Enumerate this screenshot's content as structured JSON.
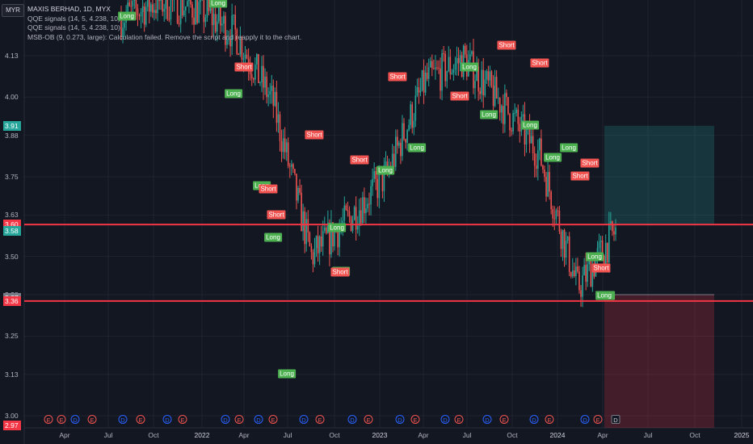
{
  "legend": {
    "title": "MAXIS BERHAD, 1D, MYX",
    "lines": [
      "QQE signals (14, 5, 4.238, 10)",
      "QQE signals (14, 5, 4.238, 10)",
      "MSB-OB (9, 0.273, large): Calculation failed. Remove the script and reapply it to the chart."
    ]
  },
  "currency": "MYR",
  "y_axis": {
    "ticks": [
      "4.13",
      "4.00",
      "3.88",
      "3.75",
      "3.63",
      "3.50",
      "3.38",
      "3.25",
      "3.13",
      "3.00"
    ],
    "price_tags": [
      {
        "label": "3.91",
        "color": "#26a69a",
        "price": 3.91
      },
      {
        "label": "3.60",
        "color": "#f23645",
        "price": 3.6
      },
      {
        "label": "3.58",
        "color": "#26a69a",
        "price": 3.58
      },
      {
        "label": "3.37",
        "color": "#787b86",
        "price": 3.37
      },
      {
        "label": "3.36",
        "color": "#f23645",
        "price": 3.36
      },
      {
        "label": "2.97",
        "color": "#f23645",
        "price": 2.97
      }
    ]
  },
  "x_axis": {
    "labels": [
      {
        "text": "Apr",
        "year": false
      },
      {
        "text": "Jul",
        "year": false
      },
      {
        "text": "Oct",
        "year": false
      },
      {
        "text": "2022",
        "year": true
      },
      {
        "text": "Apr",
        "year": false
      },
      {
        "text": "Jul",
        "year": false
      },
      {
        "text": "Oct",
        "year": false
      },
      {
        "text": "2023",
        "year": true
      },
      {
        "text": "Apr",
        "year": false
      },
      {
        "text": "Jul",
        "year": false
      },
      {
        "text": "Oct",
        "year": false
      },
      {
        "text": "2024",
        "year": true
      },
      {
        "text": "Apr",
        "year": false
      },
      {
        "text": "Jul",
        "year": false
      },
      {
        "text": "Oct",
        "year": false
      },
      {
        "text": "2025",
        "year": true
      }
    ]
  },
  "signals": [
    {
      "text": "Long",
      "type": "long"
    },
    {
      "text": "Long",
      "type": "long"
    },
    {
      "text": "Short",
      "type": "short"
    },
    {
      "text": "Long",
      "type": "long"
    },
    {
      "text": "Long",
      "type": "long"
    },
    {
      "text": "Short",
      "type": "short"
    },
    {
      "text": "Short",
      "type": "short"
    },
    {
      "text": "Long",
      "type": "long"
    },
    {
      "text": "Long",
      "type": "long"
    },
    {
      "text": "Short",
      "type": "short"
    },
    {
      "text": "Long",
      "type": "long"
    },
    {
      "text": "Long",
      "type": "long"
    },
    {
      "text": "Short",
      "type": "short"
    },
    {
      "text": "Short",
      "type": "short"
    },
    {
      "text": "Long",
      "type": "long"
    },
    {
      "text": "Long",
      "type": "long"
    },
    {
      "text": "Short",
      "type": "short"
    },
    {
      "text": "Short",
      "type": "short"
    },
    {
      "text": "Long",
      "type": "long"
    },
    {
      "text": "Long",
      "type": "long"
    },
    {
      "text": "Short",
      "type": "short"
    },
    {
      "text": "Long",
      "type": "long"
    },
    {
      "text": "Short",
      "type": "short"
    },
    {
      "text": "Long",
      "type": "long"
    },
    {
      "text": "Long",
      "type": "long"
    },
    {
      "text": "Short",
      "type": "short"
    },
    {
      "text": "Short",
      "type": "short"
    },
    {
      "text": "Long",
      "type": "long"
    },
    {
      "text": "Long",
      "type": "long"
    },
    {
      "text": "Short",
      "type": "short"
    },
    {
      "text": "Long",
      "type": "long"
    }
  ],
  "events": [
    "E",
    "E",
    "D",
    "E",
    "D",
    "E",
    "D",
    "E",
    "D",
    "E",
    "D",
    "E",
    "D",
    "E",
    "D",
    "E",
    "D",
    "E",
    "D",
    "E",
    "D",
    "E",
    "D",
    "E",
    "D",
    "E",
    "D",
    "E"
  ],
  "chart_data": {
    "type": "candlestick",
    "symbol": "MAXIS BERHAD",
    "interval": "1D",
    "exchange": "MYX",
    "x": [
      "2021-03",
      "2021-06",
      "2021-09",
      "2021-12",
      "2022-03",
      "2022-06",
      "2022-09",
      "2022-12",
      "2023-03",
      "2023-06",
      "2023-09",
      "2023-12",
      "2024-03",
      "2024-05"
    ],
    "close": [
      4.25,
      4.3,
      4.28,
      4.2,
      3.98,
      3.5,
      3.62,
      3.76,
      4.05,
      4.12,
      3.98,
      3.82,
      3.4,
      3.58
    ],
    "ylim": [
      2.97,
      4.3
    ],
    "position": {
      "entry": 3.6,
      "target": 3.91,
      "stop": 3.36
    },
    "horizontal_lines": [
      3.6,
      3.36
    ]
  }
}
